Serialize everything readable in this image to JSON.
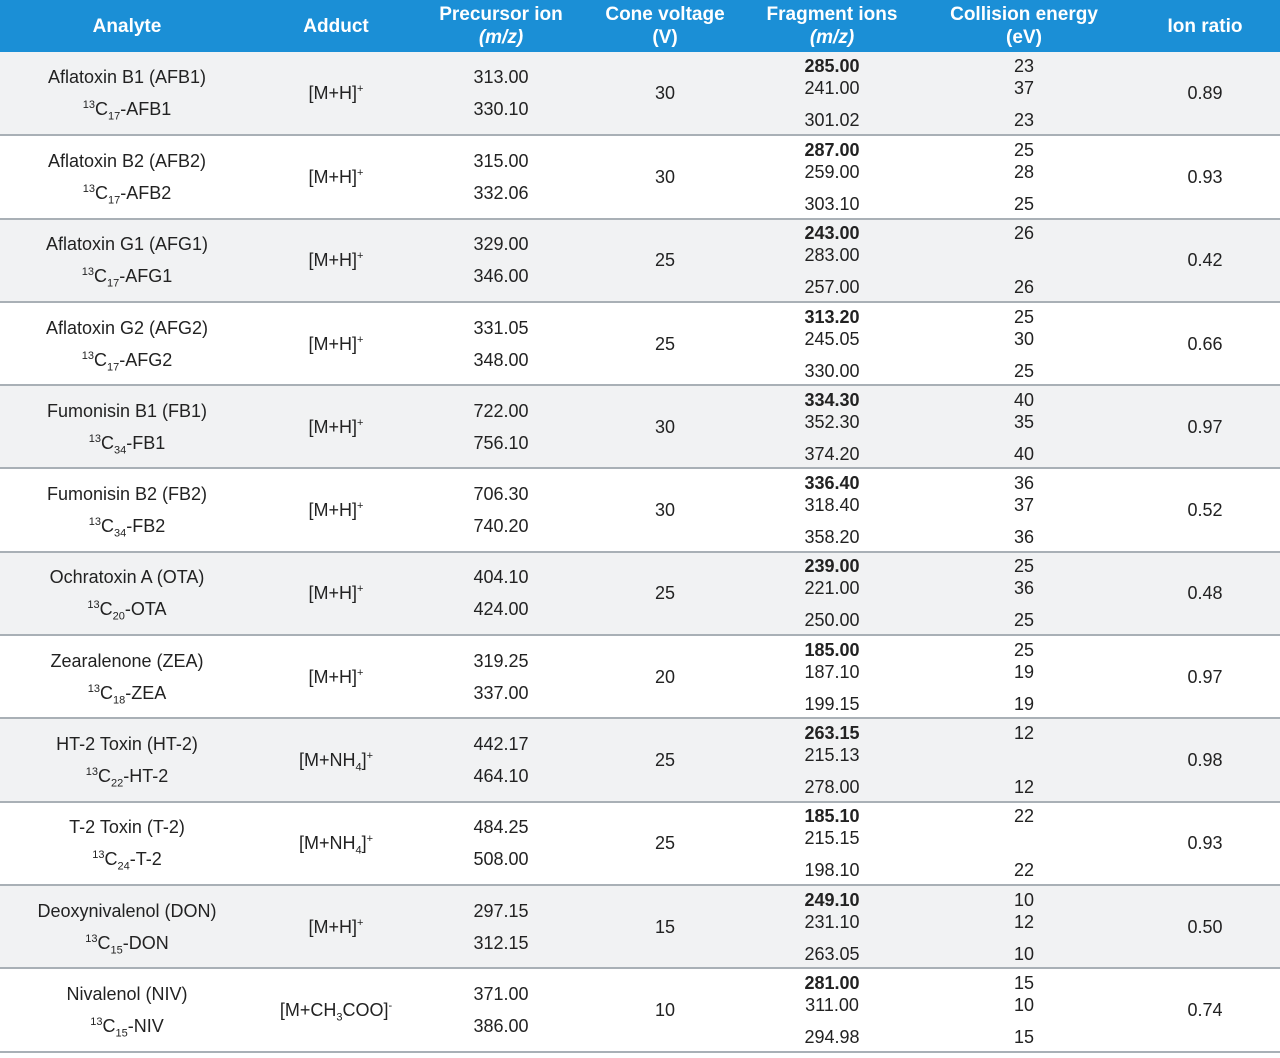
{
  "headers": {
    "analyte": "Analyte",
    "adduct": "Adduct",
    "precursor": "Precursor ion",
    "precursor_unit": "(m/z)",
    "cone": "Cone voltage",
    "cone_unit": "(V)",
    "fragment": "Fragment ions",
    "fragment_unit": "(m/z)",
    "collision": "Collision energy",
    "collision_unit": "(eV)",
    "ratio": "Ion ratio"
  },
  "rows": [
    {
      "analyte": "Aflatoxin B1 (AFB1)",
      "label_iso": "13",
      "label_num": "17",
      "label_name": "-AFB1",
      "adduct_main": "[M+H]",
      "adduct_sub": "",
      "adduct_tail": "",
      "adduct_charge": "+",
      "precursor": [
        "313.00",
        "330.10"
      ],
      "cone": "30",
      "fragments": [
        "285.00",
        "241.00",
        "301.02"
      ],
      "ce": [
        "23",
        "37",
        "23"
      ],
      "ratio": "0.89"
    },
    {
      "analyte": "Aflatoxin B2 (AFB2)",
      "label_iso": "13",
      "label_num": "17",
      "label_name": "-AFB2",
      "adduct_main": "[M+H]",
      "adduct_sub": "",
      "adduct_tail": "",
      "adduct_charge": "+",
      "precursor": [
        "315.00",
        "332.06"
      ],
      "cone": "30",
      "fragments": [
        "287.00",
        "259.00",
        "303.10"
      ],
      "ce": [
        "25",
        "28",
        "25"
      ],
      "ratio": "0.93"
    },
    {
      "analyte": "Aflatoxin G1 (AFG1)",
      "label_iso": "13",
      "label_num": "17",
      "label_name": "-AFG1",
      "adduct_main": "[M+H]",
      "adduct_sub": "",
      "adduct_tail": "",
      "adduct_charge": "+",
      "precursor": [
        "329.00",
        "346.00"
      ],
      "cone": "25",
      "fragments": [
        "243.00",
        "283.00",
        "257.00"
      ],
      "ce": [
        "26",
        "",
        "26"
      ],
      "ratio": "0.42"
    },
    {
      "analyte": "Aflatoxin G2 (AFG2)",
      "label_iso": "13",
      "label_num": "17",
      "label_name": "-AFG2",
      "adduct_main": "[M+H]",
      "adduct_sub": "",
      "adduct_tail": "",
      "adduct_charge": "+",
      "precursor": [
        "331.05",
        "348.00"
      ],
      "cone": "25",
      "fragments": [
        "313.20",
        "245.05",
        "330.00"
      ],
      "ce": [
        "25",
        "30",
        "25"
      ],
      "ratio": "0.66"
    },
    {
      "analyte": "Fumonisin B1 (FB1)",
      "label_iso": "13",
      "label_num": "34",
      "label_name": "-FB1",
      "adduct_main": "[M+H]",
      "adduct_sub": "",
      "adduct_tail": "",
      "adduct_charge": "+",
      "precursor": [
        "722.00",
        "756.10"
      ],
      "cone": "30",
      "fragments": [
        "334.30",
        "352.30",
        "374.20"
      ],
      "ce": [
        "40",
        "35",
        "40"
      ],
      "ratio": "0.97"
    },
    {
      "analyte": "Fumonisin B2 (FB2)",
      "label_iso": "13",
      "label_num": "34",
      "label_name": "-FB2",
      "adduct_main": "[M+H]",
      "adduct_sub": "",
      "adduct_tail": "",
      "adduct_charge": "+",
      "precursor": [
        "706.30",
        "740.20"
      ],
      "cone": "30",
      "fragments": [
        "336.40",
        "318.40",
        "358.20"
      ],
      "ce": [
        "36",
        "37",
        "36"
      ],
      "ratio": "0.52"
    },
    {
      "analyte": "Ochratoxin A (OTA)",
      "label_iso": "13",
      "label_num": "20",
      "label_name": "-OTA",
      "adduct_main": "[M+H]",
      "adduct_sub": "",
      "adduct_tail": "",
      "adduct_charge": "+",
      "precursor": [
        "404.10",
        "424.00"
      ],
      "cone": "25",
      "fragments": [
        "239.00",
        "221.00",
        "250.00"
      ],
      "ce": [
        "25",
        "36",
        "25"
      ],
      "ratio": "0.48"
    },
    {
      "analyte": "Zearalenone (ZEA)",
      "label_iso": "13",
      "label_num": "18",
      "label_name": "-ZEA",
      "adduct_main": "[M+H]",
      "adduct_sub": "",
      "adduct_tail": "",
      "adduct_charge": "+",
      "precursor": [
        "319.25",
        "337.00"
      ],
      "cone": "20",
      "fragments": [
        "185.00",
        "187.10",
        "199.15"
      ],
      "ce": [
        "25",
        "19",
        "19"
      ],
      "ratio": "0.97"
    },
    {
      "analyte": "HT-2 Toxin (HT-2)",
      "label_iso": "13",
      "label_num": "22",
      "label_name": "-HT-2",
      "adduct_main": "[M+NH",
      "adduct_sub": "4",
      "adduct_tail": "]",
      "adduct_charge": "+",
      "precursor": [
        "442.17",
        "464.10"
      ],
      "cone": "25",
      "fragments": [
        "263.15",
        "215.13",
        "278.00"
      ],
      "ce": [
        "12",
        "",
        "12"
      ],
      "ratio": "0.98"
    },
    {
      "analyte": "T-2 Toxin (T-2)",
      "label_iso": "13",
      "label_num": "24",
      "label_name": "-T-2",
      "adduct_main": "[M+NH",
      "adduct_sub": "4",
      "adduct_tail": "]",
      "adduct_charge": "+",
      "precursor": [
        "484.25",
        "508.00"
      ],
      "cone": "25",
      "fragments": [
        "185.10",
        "215.15",
        "198.10"
      ],
      "ce": [
        "22",
        "",
        "22"
      ],
      "ratio": "0.93"
    },
    {
      "analyte": "Deoxynivalenol (DON)",
      "label_iso": "13",
      "label_num": "15",
      "label_name": "-DON",
      "adduct_main": "[M+H]",
      "adduct_sub": "",
      "adduct_tail": "",
      "adduct_charge": "+",
      "precursor": [
        "297.15",
        "312.15"
      ],
      "cone": "15",
      "fragments": [
        "249.10",
        "231.10",
        "263.05"
      ],
      "ce": [
        "10",
        "12",
        "10"
      ],
      "ratio": "0.50"
    },
    {
      "analyte": "Nivalenol (NIV)",
      "label_iso": "13",
      "label_num": "15",
      "label_name": "-NIV",
      "adduct_main": "[M+CH",
      "adduct_sub": "3",
      "adduct_tail": "COO]",
      "adduct_charge": "-",
      "precursor": [
        "371.00",
        "386.00"
      ],
      "cone": "10",
      "fragments": [
        "281.00",
        "311.00",
        "294.98"
      ],
      "ce": [
        "15",
        "10",
        "15"
      ],
      "ratio": "0.74"
    }
  ]
}
